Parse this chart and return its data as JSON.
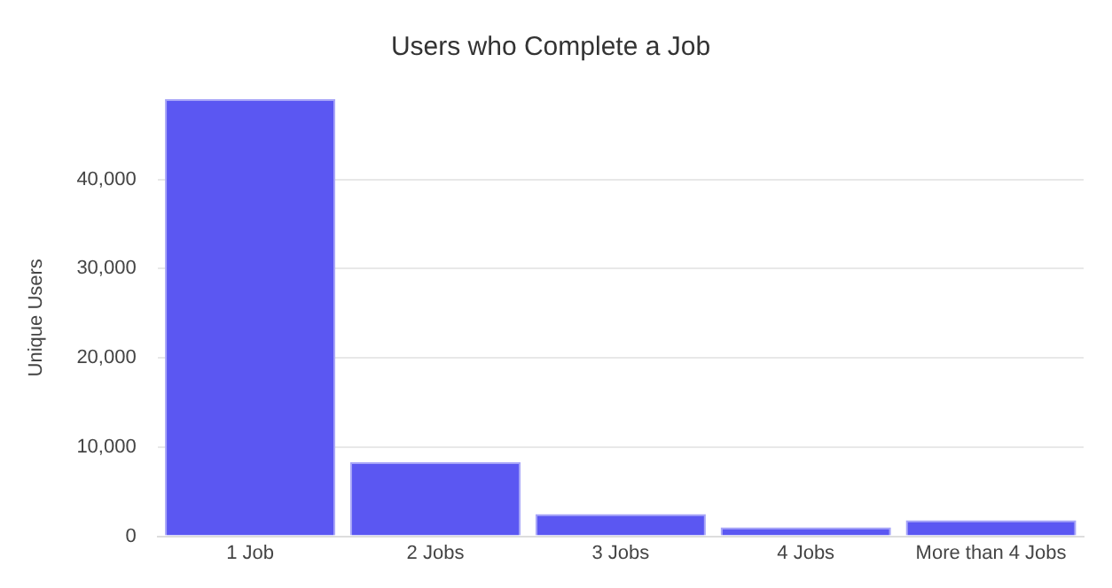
{
  "chart_data": {
    "type": "bar",
    "title": "Users who Complete a Job",
    "ylabel": "Unique Users",
    "categories": [
      "1 Job",
      "2 Jobs",
      "3 Jobs",
      "4 Jobs",
      "More than 4 Jobs"
    ],
    "values": [
      49000,
      8300,
      2500,
      1000,
      1800
    ],
    "color": "#5b57f2",
    "ylim": [
      0,
      49000
    ],
    "yticks": [
      {
        "value": 0,
        "label": "0"
      },
      {
        "value": 10000,
        "label": "10,000"
      },
      {
        "value": 20000,
        "label": "20,000"
      },
      {
        "value": 30000,
        "label": "30,000"
      },
      {
        "value": 40000,
        "label": "40,000"
      }
    ],
    "grid": "y",
    "legend": false
  }
}
